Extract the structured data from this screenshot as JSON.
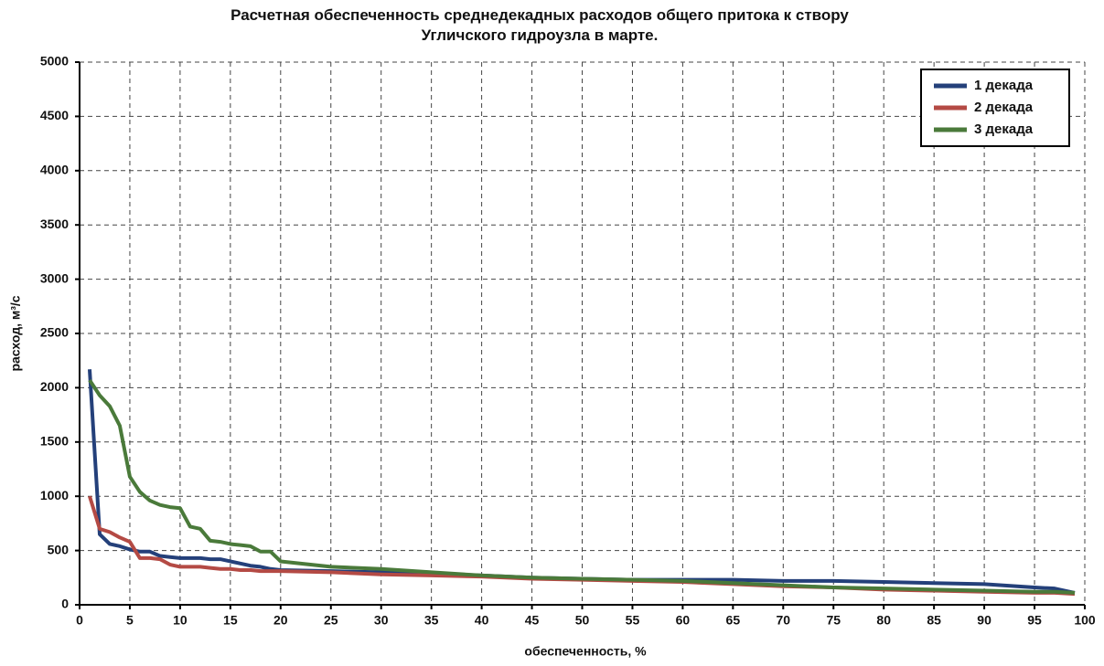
{
  "chart_data": {
    "type": "line",
    "title": "Расчетная обеспеченность среднедекадных расходов общего притока к створу Угличского гидроузла в марте.",
    "xlabel": "обеспеченность,  %",
    "ylabel": "расход, м³/с",
    "x": [
      1,
      2,
      3,
      4,
      5,
      6,
      7,
      8,
      9,
      10,
      11,
      12,
      13,
      14,
      15,
      16,
      17,
      18,
      19,
      20,
      25,
      30,
      35,
      40,
      45,
      50,
      55,
      60,
      65,
      70,
      75,
      80,
      85,
      90,
      95,
      97,
      99
    ],
    "series": [
      {
        "name": "1 декада",
        "color": "#24407a",
        "values": [
          2170,
          650,
          560,
          540,
          510,
          490,
          490,
          450,
          440,
          430,
          430,
          430,
          420,
          420,
          400,
          380,
          360,
          350,
          330,
          320,
          310,
          300,
          290,
          270,
          250,
          240,
          230,
          230,
          230,
          220,
          220,
          210,
          200,
          190,
          160,
          150,
          110
        ]
      },
      {
        "name": "2 декада",
        "color": "#b44a44",
        "values": [
          1000,
          700,
          670,
          620,
          580,
          430,
          430,
          420,
          370,
          350,
          350,
          350,
          340,
          330,
          330,
          320,
          320,
          310,
          310,
          310,
          300,
          280,
          270,
          260,
          240,
          230,
          220,
          210,
          190,
          170,
          160,
          140,
          130,
          120,
          110,
          110,
          100
        ]
      },
      {
        "name": "3 декада",
        "color": "#4a7a3a",
        "values": [
          2070,
          1930,
          1830,
          1650,
          1180,
          1040,
          960,
          920,
          900,
          890,
          720,
          700,
          590,
          580,
          560,
          550,
          540,
          490,
          490,
          400,
          350,
          330,
          300,
          270,
          250,
          240,
          230,
          220,
          200,
          180,
          160,
          150,
          140,
          130,
          120,
          120,
          110
        ]
      }
    ],
    "xlim": [
      0,
      100
    ],
    "xticks": [
      0,
      5,
      10,
      15,
      20,
      25,
      30,
      35,
      40,
      45,
      50,
      55,
      60,
      65,
      70,
      75,
      80,
      85,
      90,
      95,
      100
    ],
    "ylim": [
      0,
      5000
    ],
    "yticks": [
      0,
      500,
      1000,
      1500,
      2000,
      2500,
      3000,
      3500,
      4000,
      4500,
      5000
    ],
    "grid": true,
    "legend": "upper right"
  }
}
